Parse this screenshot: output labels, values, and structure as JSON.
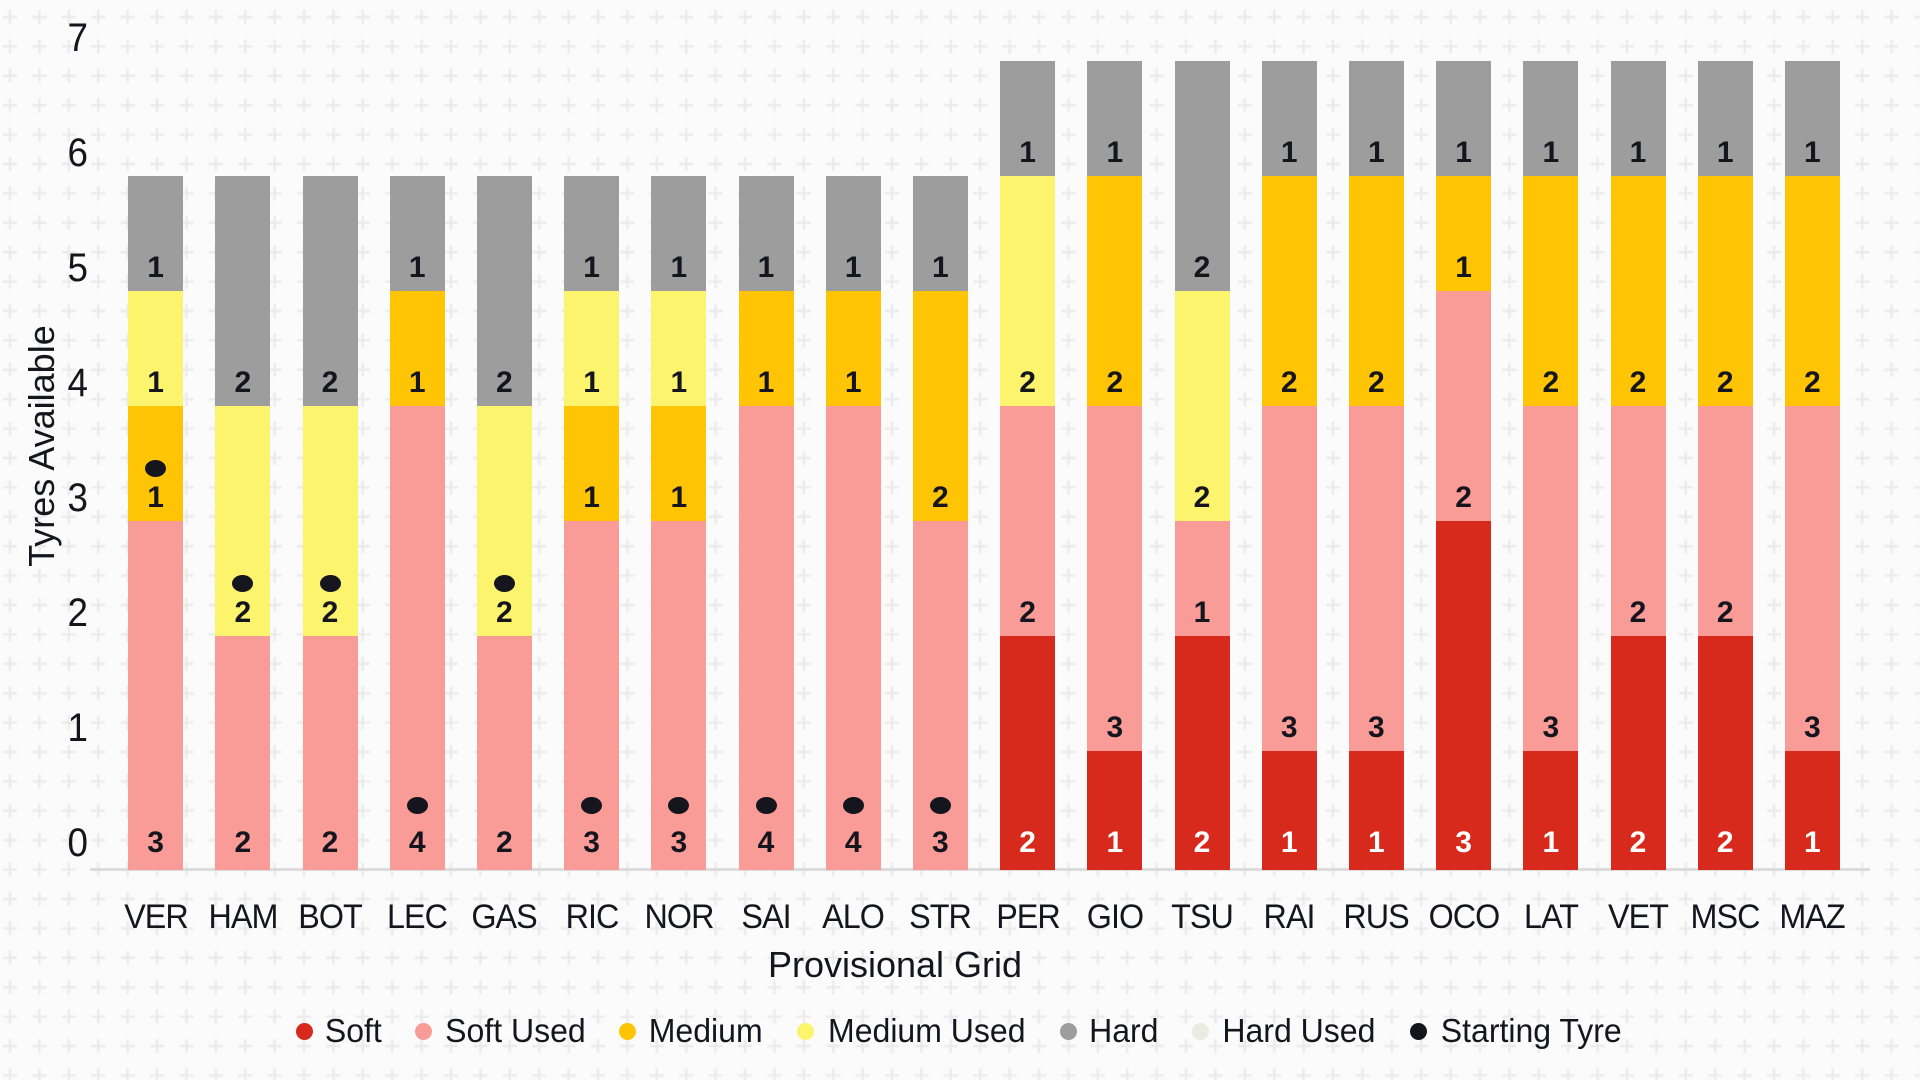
{
  "chart_data": {
    "type": "bar",
    "subtype": "stacked",
    "title": "",
    "xlabel": "Provisional Grid",
    "ylabel": "Tyres Available",
    "ylim": [
      0,
      7
    ],
    "yticks": [
      "0",
      "1",
      "2",
      "3",
      "4",
      "5",
      "6",
      "7"
    ],
    "grid": "cross-pattern background",
    "legend_position": "bottom-center",
    "colors": {
      "soft": "#d8291d",
      "soft_used": "#f99b96",
      "medium": "#ffc403",
      "medium_used": "#fdf46d",
      "hard": "#9d9d9d",
      "hard_used": "#ebebe2",
      "starting_tyre": "#15151e",
      "ink": "#15151e",
      "background": "#fbfbfb",
      "grid_cross": "#ebebeb",
      "axis_line": "#dcdcdc"
    },
    "legend": [
      {
        "key": "soft",
        "label": "Soft"
      },
      {
        "key": "soft_used",
        "label": "Soft Used"
      },
      {
        "key": "medium",
        "label": "Medium"
      },
      {
        "key": "medium_used",
        "label": "Medium Used"
      },
      {
        "key": "hard",
        "label": "Hard"
      },
      {
        "key": "hard_used",
        "label": "Hard Used"
      },
      {
        "key": "starting_tyre",
        "label": "Starting Tyre"
      }
    ],
    "drivers": [
      {
        "code": "VER",
        "segments": [
          {
            "compound": "soft_used",
            "count": 3
          },
          {
            "compound": "medium",
            "count": 1,
            "starting": true
          },
          {
            "compound": "medium_used",
            "count": 1
          },
          {
            "compound": "hard",
            "count": 1
          }
        ]
      },
      {
        "code": "HAM",
        "segments": [
          {
            "compound": "soft_used",
            "count": 2
          },
          {
            "compound": "medium_used",
            "count": 2,
            "starting": true
          },
          {
            "compound": "hard",
            "count": 2
          }
        ]
      },
      {
        "code": "BOT",
        "segments": [
          {
            "compound": "soft_used",
            "count": 2
          },
          {
            "compound": "medium_used",
            "count": 2,
            "starting": true
          },
          {
            "compound": "hard",
            "count": 2
          }
        ]
      },
      {
        "code": "LEC",
        "segments": [
          {
            "compound": "soft_used",
            "count": 4,
            "starting": true
          },
          {
            "compound": "medium",
            "count": 1
          },
          {
            "compound": "hard",
            "count": 1
          }
        ]
      },
      {
        "code": "GAS",
        "segments": [
          {
            "compound": "soft_used",
            "count": 2
          },
          {
            "compound": "medium_used",
            "count": 2,
            "starting": true
          },
          {
            "compound": "hard",
            "count": 2
          }
        ]
      },
      {
        "code": "RIC",
        "segments": [
          {
            "compound": "soft_used",
            "count": 3,
            "starting": true
          },
          {
            "compound": "medium",
            "count": 1
          },
          {
            "compound": "medium_used",
            "count": 1
          },
          {
            "compound": "hard",
            "count": 1
          }
        ]
      },
      {
        "code": "NOR",
        "segments": [
          {
            "compound": "soft_used",
            "count": 3,
            "starting": true
          },
          {
            "compound": "medium",
            "count": 1
          },
          {
            "compound": "medium_used",
            "count": 1
          },
          {
            "compound": "hard",
            "count": 1
          }
        ]
      },
      {
        "code": "SAI",
        "segments": [
          {
            "compound": "soft_used",
            "count": 4,
            "starting": true
          },
          {
            "compound": "medium",
            "count": 1
          },
          {
            "compound": "hard",
            "count": 1
          }
        ]
      },
      {
        "code": "ALO",
        "segments": [
          {
            "compound": "soft_used",
            "count": 4,
            "starting": true
          },
          {
            "compound": "medium",
            "count": 1
          },
          {
            "compound": "hard",
            "count": 1
          }
        ]
      },
      {
        "code": "STR",
        "segments": [
          {
            "compound": "soft_used",
            "count": 3,
            "starting": true
          },
          {
            "compound": "medium",
            "count": 2
          },
          {
            "compound": "hard",
            "count": 1
          }
        ]
      },
      {
        "code": "PER",
        "segments": [
          {
            "compound": "soft",
            "count": 2
          },
          {
            "compound": "soft_used",
            "count": 2
          },
          {
            "compound": "medium_used",
            "count": 2
          },
          {
            "compound": "hard",
            "count": 1
          }
        ]
      },
      {
        "code": "GIO",
        "segments": [
          {
            "compound": "soft",
            "count": 1
          },
          {
            "compound": "soft_used",
            "count": 3
          },
          {
            "compound": "medium",
            "count": 2
          },
          {
            "compound": "hard",
            "count": 1
          }
        ]
      },
      {
        "code": "TSU",
        "segments": [
          {
            "compound": "soft",
            "count": 2
          },
          {
            "compound": "soft_used",
            "count": 1
          },
          {
            "compound": "medium_used",
            "count": 2
          },
          {
            "compound": "hard",
            "count": 2
          }
        ]
      },
      {
        "code": "RAI",
        "segments": [
          {
            "compound": "soft",
            "count": 1
          },
          {
            "compound": "soft_used",
            "count": 3
          },
          {
            "compound": "medium",
            "count": 2
          },
          {
            "compound": "hard",
            "count": 1
          }
        ]
      },
      {
        "code": "RUS",
        "segments": [
          {
            "compound": "soft",
            "count": 1
          },
          {
            "compound": "soft_used",
            "count": 3
          },
          {
            "compound": "medium",
            "count": 2
          },
          {
            "compound": "hard",
            "count": 1
          }
        ]
      },
      {
        "code": "OCO",
        "segments": [
          {
            "compound": "soft",
            "count": 3
          },
          {
            "compound": "soft_used",
            "count": 2
          },
          {
            "compound": "medium",
            "count": 1
          },
          {
            "compound": "hard",
            "count": 1
          }
        ]
      },
      {
        "code": "LAT",
        "segments": [
          {
            "compound": "soft",
            "count": 1
          },
          {
            "compound": "soft_used",
            "count": 3
          },
          {
            "compound": "medium",
            "count": 2
          },
          {
            "compound": "hard",
            "count": 1
          }
        ]
      },
      {
        "code": "VET",
        "segments": [
          {
            "compound": "soft",
            "count": 2
          },
          {
            "compound": "soft_used",
            "count": 2
          },
          {
            "compound": "medium",
            "count": 2
          },
          {
            "compound": "hard",
            "count": 1
          }
        ]
      },
      {
        "code": "MSC",
        "segments": [
          {
            "compound": "soft",
            "count": 2
          },
          {
            "compound": "soft_used",
            "count": 2
          },
          {
            "compound": "medium",
            "count": 2
          },
          {
            "compound": "hard",
            "count": 1
          }
        ]
      },
      {
        "code": "MAZ",
        "segments": [
          {
            "compound": "soft",
            "count": 1
          },
          {
            "compound": "soft_used",
            "count": 3
          },
          {
            "compound": "medium",
            "count": 2
          },
          {
            "compound": "hard",
            "count": 1
          }
        ]
      }
    ]
  }
}
